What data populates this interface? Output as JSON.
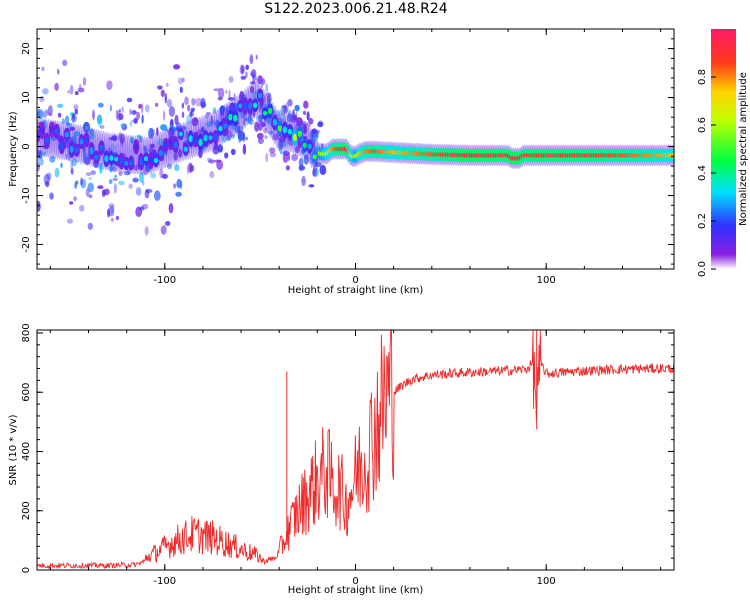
{
  "title": "S122.2023.006.21.48.R24",
  "colors": {
    "snr_line": "#ee2a2a",
    "ridge_low": "#00ffff",
    "ridge_high": "#ff2222",
    "speckle": "#8a1fe0",
    "background": "#ffffff"
  },
  "chart_data": [
    {
      "type": "heatmap",
      "xlabel": "Height of straight line (km)",
      "ylabel": "Frequency (Hz)",
      "xlim": [
        -167,
        167
      ],
      "ylim": [
        -25,
        24
      ],
      "x_ticks": [
        -100,
        0,
        100
      ],
      "y_ticks": [
        -20,
        -10,
        0,
        10,
        20
      ],
      "grid": false,
      "ridge": {
        "x": [
          -167,
          -150,
          -130,
          -110,
          -90,
          -75,
          -60,
          -52,
          -45,
          -40,
          -35,
          -30,
          -25,
          -22,
          -18,
          -15,
          -12,
          -8,
          -5,
          -2,
          0,
          2,
          5,
          10,
          20,
          40,
          60,
          80,
          82,
          86,
          88,
          92,
          110,
          140,
          167
        ],
        "y": [
          2,
          1,
          -1,
          -2,
          1,
          3,
          7,
          10,
          6,
          3,
          3,
          2,
          1,
          -1,
          -1.5,
          -1.5,
          -0.5,
          -0.5,
          -0.5,
          -2,
          -2,
          -1.5,
          -1,
          -1,
          -1.2,
          -1.6,
          -1.8,
          -1.8,
          -2.4,
          -2.4,
          -1.8,
          -1.8,
          -1.8,
          -1.8,
          -1.8
        ],
        "amplitude": [
          0.25,
          0.25,
          0.3,
          0.3,
          0.3,
          0.35,
          0.4,
          0.45,
          0.45,
          0.5,
          0.6,
          0.7,
          0.55,
          0.5,
          0.6,
          0.7,
          0.8,
          0.9,
          0.9,
          0.7,
          0.6,
          0.75,
          0.8,
          0.85,
          0.75,
          0.85,
          0.95,
          0.9,
          0.95,
          0.95,
          0.85,
          0.9,
          0.9,
          0.85,
          0.75
        ]
      },
      "colorbar": {
        "label": "Normalized spectral amplitude",
        "range": [
          0,
          1
        ],
        "ticks": [
          0.0,
          0.2,
          0.4,
          0.6,
          0.8
        ],
        "tick_labels": [
          "0.0",
          "0.2",
          "0.4",
          "0.6",
          "0.8"
        ]
      }
    },
    {
      "type": "line",
      "xlabel": "Height of straight line (km)",
      "ylabel": "SNR (10 * v/v)",
      "xlim": [
        -167,
        167
      ],
      "ylim": [
        0,
        810
      ],
      "x_ticks": [
        -100,
        0,
        100
      ],
      "y_ticks": [
        0,
        200,
        400,
        600,
        800
      ],
      "grid": false,
      "series": [
        {
          "x": [
            -167,
            -150,
            -130,
            -115,
            -105,
            -95,
            -85,
            -75,
            -65,
            -55,
            -48,
            -42,
            -38,
            -32,
            -28,
            -25,
            -22,
            -18,
            -15,
            -12,
            -8,
            -5,
            -2,
            2,
            6,
            10,
            15,
            20,
            25,
            30,
            40,
            50,
            60,
            70,
            80,
            90,
            93,
            95,
            97,
            100,
            110,
            120,
            140,
            160,
            167
          ],
          "y": [
            15,
            15,
            15,
            18,
            45,
            75,
            95,
            85,
            65,
            45,
            30,
            40,
            85,
            170,
            210,
            240,
            270,
            300,
            320,
            270,
            260,
            210,
            260,
            330,
            370,
            450,
            540,
            600,
            625,
            645,
            658,
            663,
            667,
            670,
            673,
            678,
            700,
            560,
            700,
            662,
            668,
            672,
            678,
            680,
            680
          ]
        }
      ],
      "annotations": [
        {
          "x": -36,
          "y": 670,
          "text": ""
        },
        {
          "x": 95,
          "y": 810,
          "text": ""
        },
        {
          "x": 95,
          "y": 475,
          "text": ""
        }
      ]
    }
  ]
}
